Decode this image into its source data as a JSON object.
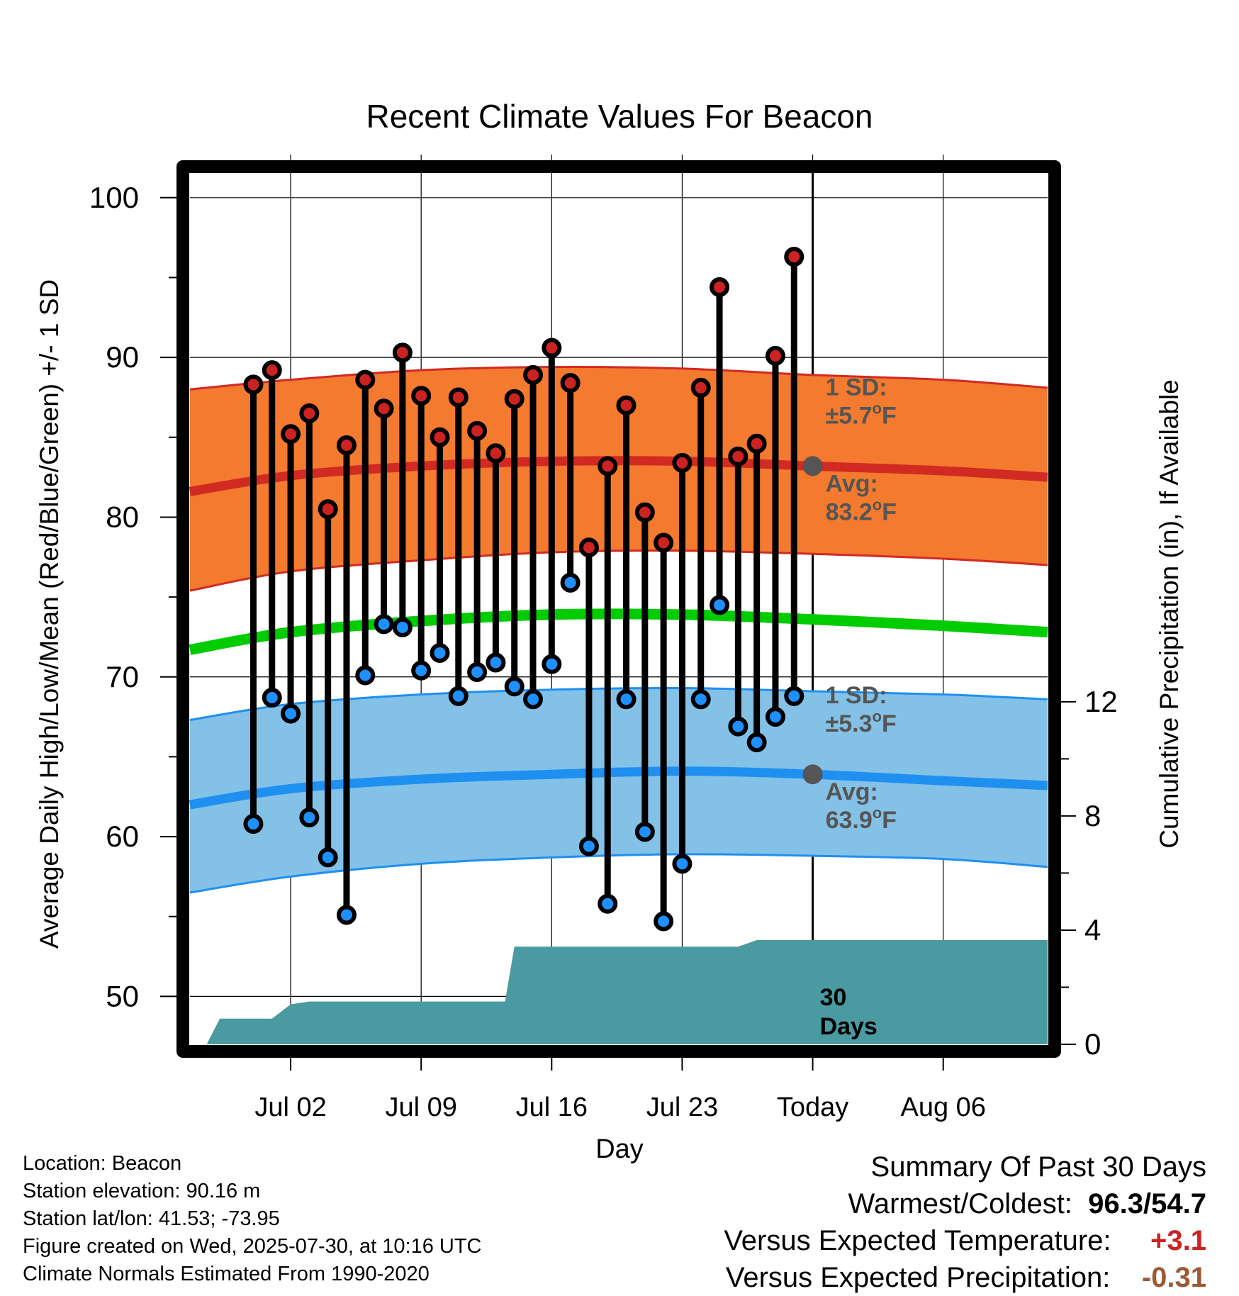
{
  "chart_data": {
    "type": "line",
    "title": "Recent Climate Values For Beacon",
    "xlabel": "Day",
    "ylabel": "Average Daily High/Low/Mean (Red/Blue/Green) +/- 1 SD",
    "y2label": "Cumulative Precipitation (in), If Available",
    "x_range_days": [
      -33.4,
      12.6
    ],
    "x_ticks": [
      {
        "offset": -28,
        "label": "Jul 02"
      },
      {
        "offset": -21,
        "label": "Jul 09"
      },
      {
        "offset": -14,
        "label": "Jul 16"
      },
      {
        "offset": -7,
        "label": "Jul 23"
      },
      {
        "offset": 0,
        "label": "Today"
      },
      {
        "offset": 7,
        "label": "Aug 06"
      }
    ],
    "ylim": [
      47,
      101.5
    ],
    "y_ticks": [
      50,
      60,
      70,
      80,
      90,
      100
    ],
    "y2lim": [
      0,
      30.5
    ],
    "y2_ticks": [
      0,
      4,
      8,
      12
    ],
    "grid": true,
    "daily": {
      "dates": [
        "Jun 30",
        "Jul 01",
        "Jul 02",
        "Jul 03",
        "Jul 04",
        "Jul 05",
        "Jul 06",
        "Jul 07",
        "Jul 08",
        "Jul 09",
        "Jul 10",
        "Jul 11",
        "Jul 12",
        "Jul 13",
        "Jul 14",
        "Jul 15",
        "Jul 16",
        "Jul 17",
        "Jul 18",
        "Jul 19",
        "Jul 20",
        "Jul 21",
        "Jul 22",
        "Jul 23",
        "Jul 24",
        "Jul 25",
        "Jul 26",
        "Jul 27",
        "Jul 28",
        "Jul 29"
      ],
      "highs": [
        88.3,
        89.2,
        85.2,
        86.5,
        80.5,
        84.5,
        88.6,
        86.8,
        90.3,
        87.6,
        85.0,
        87.5,
        85.4,
        84.0,
        87.4,
        88.9,
        90.6,
        88.4,
        78.1,
        83.2,
        87.0,
        80.3,
        78.4,
        83.4,
        88.1,
        94.4,
        83.8,
        84.6,
        90.1,
        96.3
      ],
      "lows": [
        60.8,
        68.7,
        67.7,
        61.2,
        58.7,
        55.1,
        70.1,
        73.3,
        73.1,
        70.4,
        71.5,
        68.8,
        70.3,
        70.9,
        69.4,
        68.6,
        70.8,
        75.9,
        59.4,
        55.8,
        68.6,
        60.3,
        54.7,
        58.3,
        68.6,
        74.5,
        66.9,
        65.9,
        67.5,
        68.8
      ]
    },
    "normals": {
      "offsets": [
        -33.4,
        -28,
        -21,
        -14,
        -7,
        0,
        7,
        12.6
      ],
      "high_avg": [
        81.6,
        82.6,
        83.2,
        83.5,
        83.5,
        83.2,
        82.9,
        82.5
      ],
      "high_sd_upper": [
        88.0,
        88.6,
        89.2,
        89.4,
        89.3,
        88.9,
        88.6,
        88.1
      ],
      "high_sd_lower": [
        75.4,
        76.6,
        77.3,
        77.8,
        77.9,
        77.7,
        77.4,
        77.0
      ],
      "mean": [
        71.7,
        72.8,
        73.5,
        73.9,
        73.9,
        73.6,
        73.2,
        72.8
      ],
      "low_avg": [
        62.0,
        63.0,
        63.6,
        63.9,
        64.1,
        63.9,
        63.5,
        63.2
      ],
      "low_sd_upper": [
        67.3,
        68.3,
        68.9,
        69.2,
        69.3,
        69.1,
        68.9,
        68.6
      ],
      "low_sd_lower": [
        56.5,
        57.5,
        58.3,
        58.7,
        58.9,
        58.8,
        58.6,
        58.1
      ]
    },
    "precip_cumulative": {
      "offsets": [
        -32.5,
        -31.8,
        -29,
        -28,
        -27,
        -16.5,
        -16,
        -4,
        -3,
        12.6
      ],
      "values": [
        0,
        0.9,
        0.9,
        1.4,
        1.5,
        1.5,
        3.42,
        3.42,
        3.65,
        3.65
      ]
    },
    "annotations": {
      "high_sd": {
        "line1": "1 SD:",
        "sym": "±5.7",
        "deg": "o",
        "unit": "F",
        "value": 83.2
      },
      "high_avg": {
        "label": "Avg:",
        "value": "83.2",
        "deg": "o",
        "unit": "F"
      },
      "low_sd": {
        "line1": "1 SD:",
        "sym": "±5.3",
        "deg": "o",
        "unit": "F",
        "value": 63.9
      },
      "low_avg": {
        "label": "Avg:",
        "value": "63.9",
        "deg": "o",
        "unit": "F"
      },
      "days_1": "30",
      "days_2": "Days"
    },
    "colors": {
      "high_band": "#f37a2e",
      "high_line": "#d12a23",
      "low_band": "#84c1e7",
      "low_line": "#1f8ff0",
      "mean_line": "#00cc00",
      "precip": "#4a9aa1",
      "high_dot": "#cc2222",
      "low_dot": "#1e90ff",
      "annotation": "#555555"
    }
  },
  "footer_left": {
    "location": "Location: Beacon",
    "elevation": "Station elevation: 90.16 m",
    "latlon": "Station lat/lon: 41.53; -73.95",
    "created": "Figure created on Wed, 2025-07-30, at 10:16 UTC",
    "normals": "Climate Normals Estimated From 1990-2020"
  },
  "summary": {
    "title": "Summary Of Past 30 Days",
    "warm_cold_label": "Warmest/Coldest:",
    "warmest": "96.3",
    "sep": "/",
    "coldest": "54.7",
    "temp_label": "Versus Expected Temperature:",
    "temp_value": "+3.1",
    "precip_label": "Versus Expected Precipitation:",
    "precip_value": "-0.31"
  }
}
